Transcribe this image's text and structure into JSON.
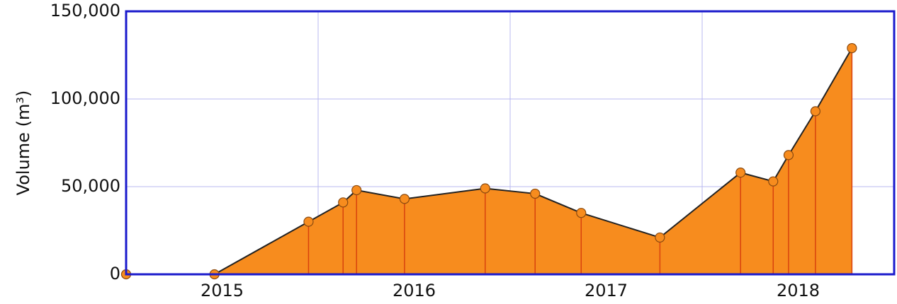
{
  "chart_data": {
    "type": "area",
    "y_label": "Volume (m³)",
    "x": [
      2015.0,
      2015.46,
      2015.95,
      2016.13,
      2016.2,
      2016.45,
      2016.87,
      2017.13,
      2017.37,
      2017.78,
      2018.2,
      2018.37,
      2018.45,
      2018.59,
      2018.78
    ],
    "series": [
      {
        "color": "#f78c1e",
        "values": [
          0,
          0,
          30000,
          41000,
          48000,
          43000,
          49000,
          46000,
          35000,
          21000,
          58000,
          53000,
          68000,
          93000,
          129000
        ]
      }
    ],
    "xlim": [
      2015,
      2019
    ],
    "xticks": [
      {
        "value": 2015.5,
        "label": "2015"
      },
      {
        "value": 2016.5,
        "label": "2016"
      },
      {
        "value": 2017.5,
        "label": "2017"
      },
      {
        "value": 2018.5,
        "label": "2018"
      }
    ],
    "xgrid": [
      2016,
      2017,
      2018
    ],
    "ylim": [
      0,
      150000
    ],
    "yticks": [
      0,
      {
        "value": 50000,
        "label": "50,000"
      },
      {
        "value": 100000,
        "label": "100,000"
      },
      {
        "value": 150000,
        "label": "150,000"
      }
    ],
    "grid": true,
    "axis_color": "#1a1acc",
    "grid_color": "#b8b8f0",
    "drop_line_color": "#d8420e"
  }
}
